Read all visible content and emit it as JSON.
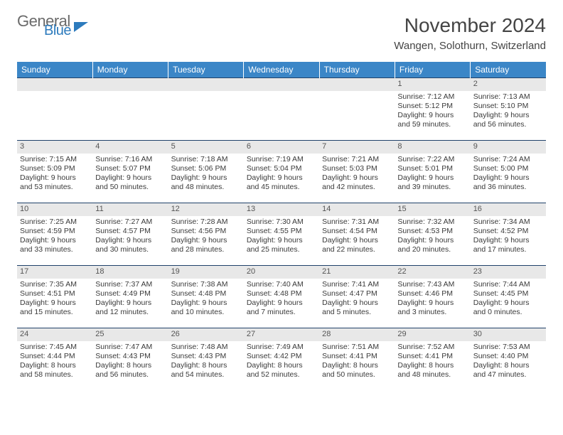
{
  "logo": {
    "line1": "General",
    "line2": "Blue"
  },
  "title": "November 2024",
  "location": "Wangen, Solothurn, Switzerland",
  "colors": {
    "header_bg": "#3b86c7",
    "row_sep": "#20416a",
    "daynum_bg": "#e8e8e8",
    "logo_blue": "#2d7bbd",
    "text": "#3a3a3a"
  },
  "weekdays": [
    "Sunday",
    "Monday",
    "Tuesday",
    "Wednesday",
    "Thursday",
    "Friday",
    "Saturday"
  ],
  "weeks": [
    [
      null,
      null,
      null,
      null,
      null,
      {
        "d": "1",
        "sr": "Sunrise: 7:12 AM",
        "ss": "Sunset: 5:12 PM",
        "dl1": "Daylight: 9 hours",
        "dl2": "and 59 minutes."
      },
      {
        "d": "2",
        "sr": "Sunrise: 7:13 AM",
        "ss": "Sunset: 5:10 PM",
        "dl1": "Daylight: 9 hours",
        "dl2": "and 56 minutes."
      }
    ],
    [
      {
        "d": "3",
        "sr": "Sunrise: 7:15 AM",
        "ss": "Sunset: 5:09 PM",
        "dl1": "Daylight: 9 hours",
        "dl2": "and 53 minutes."
      },
      {
        "d": "4",
        "sr": "Sunrise: 7:16 AM",
        "ss": "Sunset: 5:07 PM",
        "dl1": "Daylight: 9 hours",
        "dl2": "and 50 minutes."
      },
      {
        "d": "5",
        "sr": "Sunrise: 7:18 AM",
        "ss": "Sunset: 5:06 PM",
        "dl1": "Daylight: 9 hours",
        "dl2": "and 48 minutes."
      },
      {
        "d": "6",
        "sr": "Sunrise: 7:19 AM",
        "ss": "Sunset: 5:04 PM",
        "dl1": "Daylight: 9 hours",
        "dl2": "and 45 minutes."
      },
      {
        "d": "7",
        "sr": "Sunrise: 7:21 AM",
        "ss": "Sunset: 5:03 PM",
        "dl1": "Daylight: 9 hours",
        "dl2": "and 42 minutes."
      },
      {
        "d": "8",
        "sr": "Sunrise: 7:22 AM",
        "ss": "Sunset: 5:01 PM",
        "dl1": "Daylight: 9 hours",
        "dl2": "and 39 minutes."
      },
      {
        "d": "9",
        "sr": "Sunrise: 7:24 AM",
        "ss": "Sunset: 5:00 PM",
        "dl1": "Daylight: 9 hours",
        "dl2": "and 36 minutes."
      }
    ],
    [
      {
        "d": "10",
        "sr": "Sunrise: 7:25 AM",
        "ss": "Sunset: 4:59 PM",
        "dl1": "Daylight: 9 hours",
        "dl2": "and 33 minutes."
      },
      {
        "d": "11",
        "sr": "Sunrise: 7:27 AM",
        "ss": "Sunset: 4:57 PM",
        "dl1": "Daylight: 9 hours",
        "dl2": "and 30 minutes."
      },
      {
        "d": "12",
        "sr": "Sunrise: 7:28 AM",
        "ss": "Sunset: 4:56 PM",
        "dl1": "Daylight: 9 hours",
        "dl2": "and 28 minutes."
      },
      {
        "d": "13",
        "sr": "Sunrise: 7:30 AM",
        "ss": "Sunset: 4:55 PM",
        "dl1": "Daylight: 9 hours",
        "dl2": "and 25 minutes."
      },
      {
        "d": "14",
        "sr": "Sunrise: 7:31 AM",
        "ss": "Sunset: 4:54 PM",
        "dl1": "Daylight: 9 hours",
        "dl2": "and 22 minutes."
      },
      {
        "d": "15",
        "sr": "Sunrise: 7:32 AM",
        "ss": "Sunset: 4:53 PM",
        "dl1": "Daylight: 9 hours",
        "dl2": "and 20 minutes."
      },
      {
        "d": "16",
        "sr": "Sunrise: 7:34 AM",
        "ss": "Sunset: 4:52 PM",
        "dl1": "Daylight: 9 hours",
        "dl2": "and 17 minutes."
      }
    ],
    [
      {
        "d": "17",
        "sr": "Sunrise: 7:35 AM",
        "ss": "Sunset: 4:51 PM",
        "dl1": "Daylight: 9 hours",
        "dl2": "and 15 minutes."
      },
      {
        "d": "18",
        "sr": "Sunrise: 7:37 AM",
        "ss": "Sunset: 4:49 PM",
        "dl1": "Daylight: 9 hours",
        "dl2": "and 12 minutes."
      },
      {
        "d": "19",
        "sr": "Sunrise: 7:38 AM",
        "ss": "Sunset: 4:48 PM",
        "dl1": "Daylight: 9 hours",
        "dl2": "and 10 minutes."
      },
      {
        "d": "20",
        "sr": "Sunrise: 7:40 AM",
        "ss": "Sunset: 4:48 PM",
        "dl1": "Daylight: 9 hours",
        "dl2": "and 7 minutes."
      },
      {
        "d": "21",
        "sr": "Sunrise: 7:41 AM",
        "ss": "Sunset: 4:47 PM",
        "dl1": "Daylight: 9 hours",
        "dl2": "and 5 minutes."
      },
      {
        "d": "22",
        "sr": "Sunrise: 7:43 AM",
        "ss": "Sunset: 4:46 PM",
        "dl1": "Daylight: 9 hours",
        "dl2": "and 3 minutes."
      },
      {
        "d": "23",
        "sr": "Sunrise: 7:44 AM",
        "ss": "Sunset: 4:45 PM",
        "dl1": "Daylight: 9 hours",
        "dl2": "and 0 minutes."
      }
    ],
    [
      {
        "d": "24",
        "sr": "Sunrise: 7:45 AM",
        "ss": "Sunset: 4:44 PM",
        "dl1": "Daylight: 8 hours",
        "dl2": "and 58 minutes."
      },
      {
        "d": "25",
        "sr": "Sunrise: 7:47 AM",
        "ss": "Sunset: 4:43 PM",
        "dl1": "Daylight: 8 hours",
        "dl2": "and 56 minutes."
      },
      {
        "d": "26",
        "sr": "Sunrise: 7:48 AM",
        "ss": "Sunset: 4:43 PM",
        "dl1": "Daylight: 8 hours",
        "dl2": "and 54 minutes."
      },
      {
        "d": "27",
        "sr": "Sunrise: 7:49 AM",
        "ss": "Sunset: 4:42 PM",
        "dl1": "Daylight: 8 hours",
        "dl2": "and 52 minutes."
      },
      {
        "d": "28",
        "sr": "Sunrise: 7:51 AM",
        "ss": "Sunset: 4:41 PM",
        "dl1": "Daylight: 8 hours",
        "dl2": "and 50 minutes."
      },
      {
        "d": "29",
        "sr": "Sunrise: 7:52 AM",
        "ss": "Sunset: 4:41 PM",
        "dl1": "Daylight: 8 hours",
        "dl2": "and 48 minutes."
      },
      {
        "d": "30",
        "sr": "Sunrise: 7:53 AM",
        "ss": "Sunset: 4:40 PM",
        "dl1": "Daylight: 8 hours",
        "dl2": "and 47 minutes."
      }
    ]
  ]
}
